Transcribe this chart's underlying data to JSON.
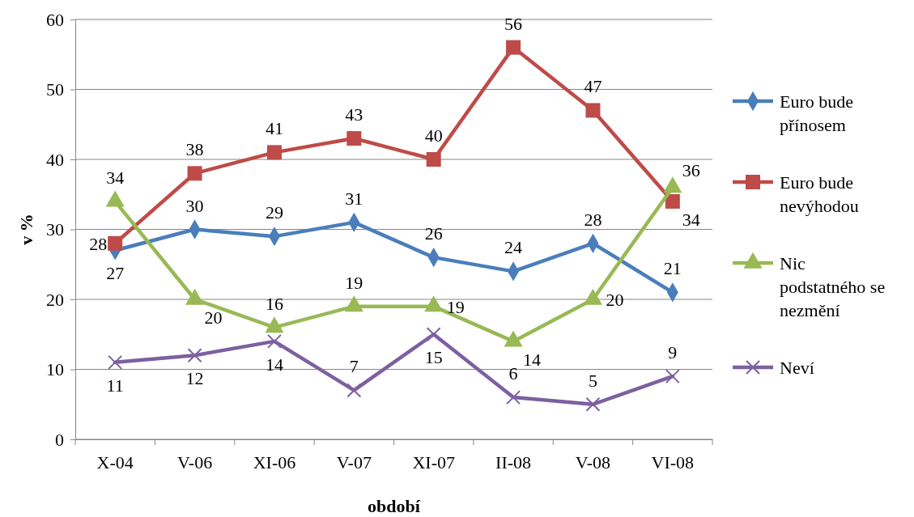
{
  "chart_data": {
    "type": "line",
    "xlabel": "období",
    "ylabel": "v %",
    "categories": [
      "X-04",
      "V-06",
      "XI-06",
      "V-07",
      "XI-07",
      "II-08",
      "V-08",
      "VI-08"
    ],
    "series": [
      {
        "name": "Euro bude přínosem",
        "color": "#4a7ebb",
        "marker": "diamond",
        "values": [
          27,
          30,
          29,
          31,
          26,
          24,
          28,
          21
        ]
      },
      {
        "name": "Euro bude nevýhodou",
        "color": "#be4b48",
        "marker": "square",
        "values": [
          28,
          38,
          41,
          43,
          40,
          56,
          47,
          34
        ]
      },
      {
        "name": "Nic podstatného se nezmění",
        "color": "#98b954",
        "marker": "triangle",
        "values": [
          34,
          20,
          16,
          19,
          19,
          14,
          20,
          36
        ]
      },
      {
        "name": "Neví",
        "color": "#7d60a0",
        "marker": "cross",
        "values": [
          11,
          12,
          14,
          7,
          15,
          6,
          5,
          9
        ]
      }
    ],
    "ylim": [
      0,
      60
    ],
    "yticks": [
      0,
      10,
      20,
      30,
      40,
      50,
      60
    ],
    "grid": "y",
    "legend": "right",
    "data_labels": true,
    "line_style": "solid"
  }
}
